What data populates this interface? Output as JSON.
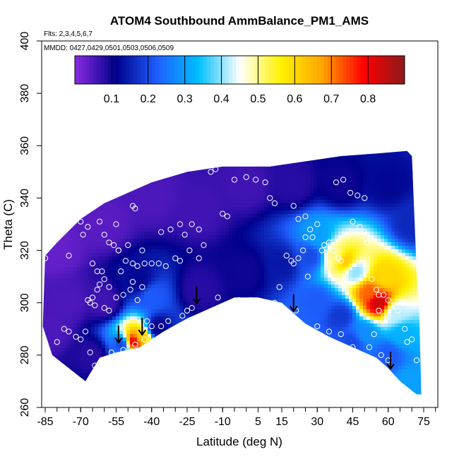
{
  "chart_data": {
    "type": "heatmap",
    "title": "ATOM4 Southbound AmmBalance_PM1_AMS",
    "flights_note": "Flts: 2,3,4,5,6,7",
    "dates_note": "MMDD: 0427,0429,0501,0503,0506,0509",
    "xlabel": "Latitude (deg N)",
    "ylabel": "Theta (C)",
    "xlim": [
      -87,
      84
    ],
    "ylim": [
      260,
      400
    ],
    "x_ticks": [
      -85,
      -70,
      -55,
      -40,
      -25,
      -10,
      5,
      15,
      30,
      45,
      60,
      75
    ],
    "y_ticks": [
      260,
      280,
      300,
      320,
      340,
      360,
      380,
      400
    ],
    "colorbar": {
      "range": [
        0,
        0.9
      ],
      "ticks": [
        0.1,
        0.2,
        0.3,
        0.4,
        0.5,
        0.6,
        0.7,
        0.8
      ],
      "colors": [
        "#8A2BE2",
        "#00008B",
        "#1E5FFF",
        "#00BFFF",
        "#FFFFFF",
        "#FFF200",
        "#FFA500",
        "#FF0000",
        "#8B1A1A"
      ]
    },
    "region_upper": [
      [
        -86,
        291
      ],
      [
        -85,
        318
      ],
      [
        -80,
        323
      ],
      [
        -70,
        332
      ],
      [
        -60,
        338
      ],
      [
        -50,
        342
      ],
      [
        -40,
        346
      ],
      [
        -25,
        350
      ],
      [
        -10,
        352
      ],
      [
        10,
        352
      ],
      [
        25,
        354
      ],
      [
        40,
        356
      ],
      [
        55,
        357
      ],
      [
        68,
        358
      ],
      [
        70,
        356
      ],
      [
        72,
        312
      ],
      [
        73,
        300
      ],
      [
        74,
        265
      ]
    ],
    "region_lower": [
      [
        -86,
        291
      ],
      [
        -82,
        280
      ],
      [
        -75,
        275
      ],
      [
        -68,
        270
      ],
      [
        -62,
        279
      ],
      [
        -55,
        281
      ],
      [
        -45,
        283
      ],
      [
        -35,
        289
      ],
      [
        -25,
        294
      ],
      [
        -15,
        298
      ],
      [
        -5,
        302
      ],
      [
        5,
        302
      ],
      [
        15,
        300
      ],
      [
        25,
        292
      ],
      [
        35,
        287
      ],
      [
        45,
        283
      ],
      [
        55,
        279
      ],
      [
        60,
        275
      ],
      [
        65,
        270
      ],
      [
        72,
        265
      ],
      [
        74,
        265
      ]
    ],
    "field_points": [
      {
        "lat": -80,
        "theta": 320,
        "value": 0.03
      },
      {
        "lat": -60,
        "theta": 330,
        "value": 0.04
      },
      {
        "lat": -40,
        "theta": 340,
        "value": 0.05
      },
      {
        "lat": -20,
        "theta": 335,
        "value": 0.06
      },
      {
        "lat": 0,
        "theta": 345,
        "value": 0.06
      },
      {
        "lat": 20,
        "theta": 345,
        "value": 0.08
      },
      {
        "lat": 40,
        "theta": 345,
        "value": 0.1
      },
      {
        "lat": 60,
        "theta": 345,
        "value": 0.12
      },
      {
        "lat": -75,
        "theta": 300,
        "value": 0.05
      },
      {
        "lat": -60,
        "theta": 300,
        "value": 0.06
      },
      {
        "lat": -45,
        "theta": 308,
        "value": 0.12
      },
      {
        "lat": -40,
        "theta": 303,
        "value": 0.22
      },
      {
        "lat": -20,
        "theta": 305,
        "value": 0.08
      },
      {
        "lat": 0,
        "theta": 312,
        "value": 0.1
      },
      {
        "lat": 15,
        "theta": 315,
        "value": 0.14
      },
      {
        "lat": 27,
        "theta": 318,
        "value": 0.2
      },
      {
        "lat": 30,
        "theta": 325,
        "value": 0.3
      },
      {
        "lat": 38,
        "theta": 318,
        "value": 0.5
      },
      {
        "lat": 42,
        "theta": 316,
        "value": 0.62
      },
      {
        "lat": 46,
        "theta": 312,
        "value": 0.4
      },
      {
        "lat": 52,
        "theta": 304,
        "value": 0.72
      },
      {
        "lat": 56,
        "theta": 300,
        "value": 0.84
      },
      {
        "lat": 58,
        "theta": 310,
        "value": 0.6
      },
      {
        "lat": 63,
        "theta": 296,
        "value": 0.42
      },
      {
        "lat": 66,
        "theta": 288,
        "value": 0.32
      },
      {
        "lat": 50,
        "theta": 288,
        "value": 0.28
      },
      {
        "lat": 40,
        "theta": 295,
        "value": 0.18
      },
      {
        "lat": 30,
        "theta": 300,
        "value": 0.22
      },
      {
        "lat": 45,
        "theta": 285,
        "value": 0.2
      },
      {
        "lat": 60,
        "theta": 280,
        "value": 0.22
      },
      {
        "lat": 70,
        "theta": 270,
        "value": 0.3
      },
      {
        "lat": 70,
        "theta": 330,
        "value": 0.16
      },
      {
        "lat": -48,
        "theta": 285,
        "value": 0.82
      },
      {
        "lat": -44,
        "theta": 287,
        "value": 0.62
      },
      {
        "lat": -52,
        "theta": 284,
        "value": 0.18
      },
      {
        "lat": -38,
        "theta": 290,
        "value": 0.1
      },
      {
        "lat": -65,
        "theta": 280,
        "value": 0.08
      },
      {
        "lat": -82,
        "theta": 290,
        "value": 0.05
      }
    ],
    "obs_points": [
      [
        -85,
        317
      ],
      [
        -75,
        318
      ],
      [
        -70,
        331
      ],
      [
        -69,
        326
      ],
      [
        -67,
        329
      ],
      [
        -62,
        331
      ],
      [
        -60,
        326
      ],
      [
        -58,
        323
      ],
      [
        -56,
        322
      ],
      [
        -55,
        330
      ],
      [
        -54,
        320
      ],
      [
        -53,
        312
      ],
      [
        -51,
        316
      ],
      [
        -50,
        322
      ],
      [
        -48,
        315
      ],
      [
        -46,
        314
      ],
      [
        -44,
        320
      ],
      [
        -43,
        315
      ],
      [
        -40,
        315
      ],
      [
        -37,
        315
      ],
      [
        -34,
        314
      ],
      [
        -30,
        317
      ],
      [
        -28,
        316
      ],
      [
        -26,
        326
      ],
      [
        -24,
        320
      ],
      [
        -20,
        317
      ],
      [
        -18,
        322
      ],
      [
        -36,
        327
      ],
      [
        -32,
        328
      ],
      [
        -28,
        330
      ],
      [
        -23,
        330
      ],
      [
        -20,
        328
      ],
      [
        -10,
        334
      ],
      [
        -8,
        333
      ],
      [
        -5,
        347
      ],
      [
        0,
        348
      ],
      [
        4,
        347
      ],
      [
        8,
        346
      ],
      [
        10,
        340
      ],
      [
        12,
        338
      ],
      [
        -15,
        350
      ],
      [
        -13,
        351
      ],
      [
        -54,
        320
      ],
      [
        -48,
        337
      ],
      [
        -47,
        336
      ],
      [
        -65,
        315
      ],
      [
        -63,
        312
      ],
      [
        -61,
        312
      ],
      [
        -60,
        309
      ],
      [
        -58,
        306
      ],
      [
        -62,
        307
      ],
      [
        -63,
        305
      ],
      [
        -65,
        302
      ],
      [
        -67,
        301
      ],
      [
        -66,
        300
      ],
      [
        -64,
        299
      ],
      [
        -60,
        298
      ],
      [
        -58,
        297
      ],
      [
        -55,
        302
      ],
      [
        -52,
        303
      ],
      [
        -49,
        305
      ],
      [
        -48,
        308
      ],
      [
        -46,
        301
      ],
      [
        -44,
        306
      ],
      [
        -42,
        293
      ],
      [
        -40,
        291
      ],
      [
        -36,
        291
      ],
      [
        -33,
        293
      ],
      [
        -30,
        290
      ],
      [
        -27,
        295
      ],
      [
        -25,
        297
      ],
      [
        -23,
        298
      ],
      [
        -68,
        289
      ],
      [
        -72,
        287
      ],
      [
        -80,
        285
      ],
      [
        -77,
        290
      ],
      [
        -75,
        289
      ],
      [
        -70,
        286
      ],
      [
        -66,
        281
      ],
      [
        -64,
        276
      ],
      [
        -62,
        272
      ],
      [
        -60,
        274
      ],
      [
        -57,
        281
      ],
      [
        -52,
        282
      ],
      [
        -47,
        284
      ],
      [
        -43,
        286
      ],
      [
        -30,
        288
      ],
      [
        -12,
        302
      ],
      [
        -3,
        301
      ],
      [
        2,
        301
      ],
      [
        7,
        299
      ],
      [
        12,
        300
      ],
      [
        14,
        306
      ],
      [
        17,
        318
      ],
      [
        19,
        316
      ],
      [
        20,
        315
      ],
      [
        22,
        317
      ],
      [
        24,
        320
      ],
      [
        25,
        325
      ],
      [
        27,
        328
      ],
      [
        30,
        330
      ],
      [
        33,
        322
      ],
      [
        35,
        323
      ],
      [
        37,
        320
      ],
      [
        39,
        317
      ],
      [
        40,
        316
      ],
      [
        45,
        331
      ],
      [
        48,
        329
      ],
      [
        50,
        327
      ],
      [
        51,
        323
      ],
      [
        53,
        309
      ],
      [
        56,
        303
      ],
      [
        60,
        301
      ],
      [
        66,
        300
      ],
      [
        64,
        297
      ],
      [
        67,
        290
      ],
      [
        70,
        286
      ],
      [
        72,
        278
      ],
      [
        56,
        297
      ],
      [
        58,
        303
      ],
      [
        55,
        305
      ],
      [
        30,
        291
      ],
      [
        35,
        289
      ],
      [
        40,
        288
      ],
      [
        45,
        283
      ],
      [
        52,
        283
      ],
      [
        54,
        288
      ],
      [
        57,
        280
      ],
      [
        60,
        278
      ],
      [
        68,
        285
      ],
      [
        70,
        262
      ],
      [
        38,
        346
      ],
      [
        41,
        347
      ],
      [
        44,
        342
      ],
      [
        47,
        341
      ],
      [
        50,
        340
      ],
      [
        20,
        337
      ],
      [
        22,
        332
      ],
      [
        25,
        333
      ],
      [
        28,
        325
      ],
      [
        32,
        320
      ],
      [
        35,
        315
      ],
      [
        26,
        310
      ],
      [
        21,
        297
      ]
    ],
    "arrows": [
      {
        "lat": -54,
        "theta": 288
      },
      {
        "lat": -44,
        "theta": 291
      },
      {
        "lat": -21,
        "theta": 303
      },
      {
        "lat": 20,
        "theta": 300
      },
      {
        "lat": 61,
        "theta": 278
      }
    ]
  }
}
